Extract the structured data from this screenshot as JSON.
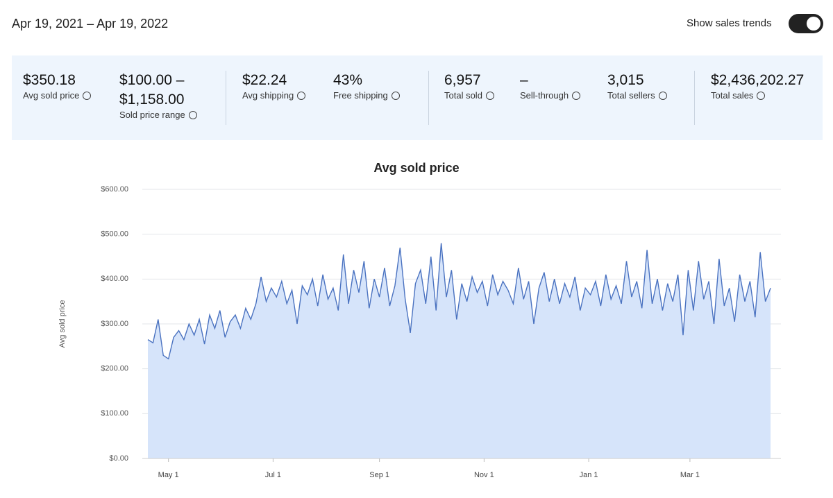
{
  "header": {
    "date_range": "Apr 19, 2021 – Apr 19, 2022",
    "toggle_label": "Show sales trends"
  },
  "stats": [
    {
      "value": "$350.18",
      "label": "Avg sold price"
    },
    {
      "value": "$100.00 – $1,158.00",
      "label": "Sold price range"
    },
    {
      "value": "$22.24",
      "label": "Avg shipping"
    },
    {
      "value": "43%",
      "label": "Free shipping"
    },
    {
      "value": "6,957",
      "label": "Total sold"
    },
    {
      "value": "–",
      "label": "Sell-through"
    },
    {
      "value": "3,015",
      "label": "Total sellers"
    },
    {
      "value": "$2,436,202.27",
      "label": "Total sales"
    }
  ],
  "chart_data": {
    "type": "area",
    "title": "Avg sold price",
    "y_label": "Avg sold price",
    "color": "#4a72c0",
    "fill": "#d6e4fa",
    "grid": true,
    "xlim": [
      0,
      365
    ],
    "ylim": [
      0,
      600
    ],
    "xticks": [
      {
        "value": 12,
        "label": "May 1"
      },
      {
        "value": 73,
        "label": "Jul 1"
      },
      {
        "value": 135,
        "label": "Sep 1"
      },
      {
        "value": 196,
        "label": "Nov 1"
      },
      {
        "value": 257,
        "label": "Jan 1"
      },
      {
        "value": 316,
        "label": "Mar 1"
      }
    ],
    "yticks": [
      {
        "value": 0,
        "label": "$0.00"
      },
      {
        "value": 100,
        "label": "$100.00"
      },
      {
        "value": 200,
        "label": "$200.00"
      },
      {
        "value": 300,
        "label": "$300.00"
      },
      {
        "value": 400,
        "label": "$400.00"
      },
      {
        "value": 500,
        "label": "$500.00"
      },
      {
        "value": 600,
        "label": "$600.00"
      }
    ],
    "x": [
      0,
      3,
      6,
      9,
      12,
      15,
      18,
      21,
      24,
      27,
      30,
      33,
      36,
      39,
      42,
      45,
      48,
      51,
      54,
      57,
      60,
      63,
      66,
      69,
      72,
      75,
      78,
      81,
      84,
      87,
      90,
      93,
      96,
      99,
      102,
      105,
      108,
      111,
      114,
      117,
      120,
      123,
      126,
      129,
      132,
      135,
      138,
      141,
      144,
      147,
      150,
      153,
      156,
      159,
      162,
      165,
      168,
      171,
      174,
      177,
      180,
      183,
      186,
      189,
      192,
      195,
      198,
      201,
      204,
      207,
      210,
      213,
      216,
      219,
      222,
      225,
      228,
      231,
      234,
      237,
      240,
      243,
      246,
      249,
      252,
      255,
      258,
      261,
      264,
      267,
      270,
      273,
      276,
      279,
      282,
      285,
      288,
      291,
      294,
      297,
      300,
      303,
      306,
      309,
      312,
      315,
      318,
      321,
      324,
      327,
      330,
      333,
      336,
      339,
      342,
      345,
      348,
      351,
      354,
      357,
      360,
      363
    ],
    "values": [
      265,
      258,
      310,
      230,
      222,
      270,
      285,
      265,
      300,
      275,
      310,
      255,
      320,
      290,
      330,
      270,
      305,
      320,
      290,
      335,
      310,
      345,
      405,
      350,
      380,
      360,
      395,
      345,
      375,
      300,
      385,
      365,
      400,
      340,
      410,
      355,
      380,
      330,
      455,
      345,
      420,
      370,
      440,
      335,
      400,
      360,
      425,
      340,
      385,
      470,
      355,
      280,
      390,
      420,
      345,
      450,
      330,
      480,
      360,
      420,
      310,
      390,
      350,
      405,
      370,
      395,
      340,
      410,
      365,
      395,
      375,
      345,
      425,
      355,
      395,
      300,
      380,
      415,
      350,
      400,
      345,
      390,
      360,
      405,
      330,
      380,
      365,
      395,
      340,
      410,
      355,
      385,
      345,
      440,
      360,
      395,
      335,
      465,
      345,
      400,
      330,
      390,
      350,
      410,
      275,
      420,
      330,
      440,
      355,
      395,
      300,
      445,
      340,
      380,
      305,
      410,
      350,
      395,
      315,
      460,
      350,
      380
    ]
  }
}
